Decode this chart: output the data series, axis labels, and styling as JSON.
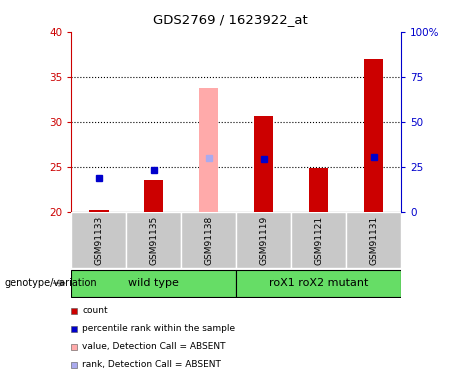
{
  "title": "GDS2769 / 1623922_at",
  "samples": [
    "GSM91133",
    "GSM91135",
    "GSM91138",
    "GSM91119",
    "GSM91121",
    "GSM91131"
  ],
  "groups": [
    {
      "name": "wild type",
      "indices": [
        0,
        1,
        2
      ],
      "color": "#66dd66"
    },
    {
      "name": "roX1 roX2 mutant",
      "indices": [
        3,
        4,
        5
      ],
      "color": "#66dd66"
    }
  ],
  "ylim_left": [
    20,
    40
  ],
  "ylim_right": [
    0,
    100
  ],
  "yticks_left": [
    20,
    25,
    30,
    35,
    40
  ],
  "yticks_right": [
    0,
    25,
    50,
    75,
    100
  ],
  "ytick_labels_right": [
    "0",
    "25",
    "50",
    "75",
    "100%"
  ],
  "grid_values": [
    25,
    30,
    35
  ],
  "count_values": [
    20.2,
    23.5,
    null,
    30.6,
    24.9,
    37.0
  ],
  "percentile_values": [
    23.8,
    24.6,
    null,
    25.9,
    null,
    26.1
  ],
  "absent_value_bar": [
    null,
    null,
    33.8,
    null,
    null,
    null
  ],
  "absent_rank_bar": [
    null,
    null,
    26.0,
    null,
    null,
    null
  ],
  "bar_width": 0.35,
  "count_color": "#cc0000",
  "percentile_color": "#0000cc",
  "absent_value_color": "#ffaaaa",
  "absent_rank_color": "#aaaaee",
  "legend_items": [
    {
      "label": "count",
      "color": "#cc0000"
    },
    {
      "label": "percentile rank within the sample",
      "color": "#0000cc"
    },
    {
      "label": "value, Detection Call = ABSENT",
      "color": "#ffaaaa"
    },
    {
      "label": "rank, Detection Call = ABSENT",
      "color": "#aaaaee"
    }
  ],
  "left_axis_color": "#cc0000",
  "right_axis_color": "#0000cc",
  "background_color": "#ffffff",
  "group_row_color": "#c8c8c8",
  "genotype_label": "genotype/variation"
}
